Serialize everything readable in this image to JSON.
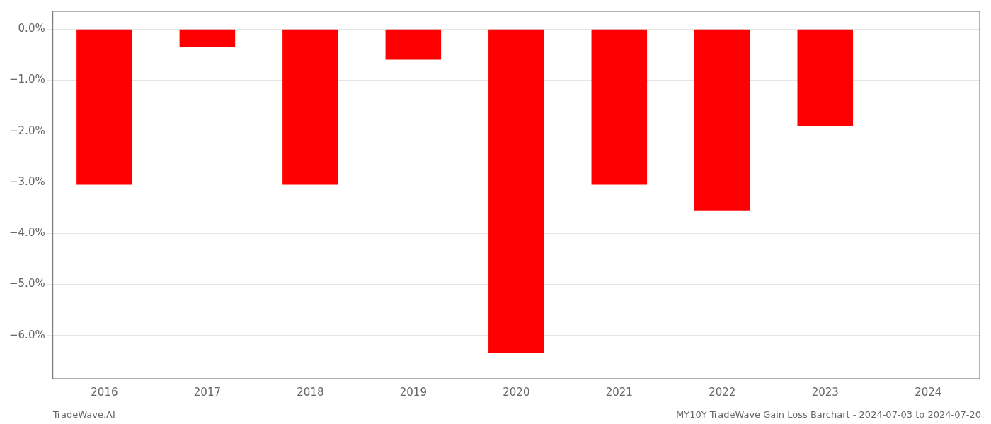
{
  "chart_data": {
    "type": "bar",
    "categories": [
      "2016",
      "2017",
      "2018",
      "2019",
      "2020",
      "2021",
      "2022",
      "2023",
      "2024"
    ],
    "values": [
      -3.05,
      -0.35,
      -3.05,
      -0.6,
      -6.35,
      -3.05,
      -3.55,
      -1.9,
      0.0
    ],
    "color": "#ff0000",
    "ylim": [
      -6.85,
      0.35
    ],
    "yticks": [
      {
        "value": 0.0,
        "label": "0.0%"
      },
      {
        "value": -1.0,
        "label": "−1.0%"
      },
      {
        "value": -2.0,
        "label": "−2.0%"
      },
      {
        "value": -3.0,
        "label": "−3.0%"
      },
      {
        "value": -4.0,
        "label": "−4.0%"
      },
      {
        "value": -5.0,
        "label": "−5.0%"
      },
      {
        "value": -6.0,
        "label": "−6.0%"
      }
    ],
    "grid": true,
    "annotations": [
      "TradeWave.AI",
      "MY10Y TradeWave Gain Loss Barchart - 2024-07-03 to 2024-07-20"
    ]
  }
}
